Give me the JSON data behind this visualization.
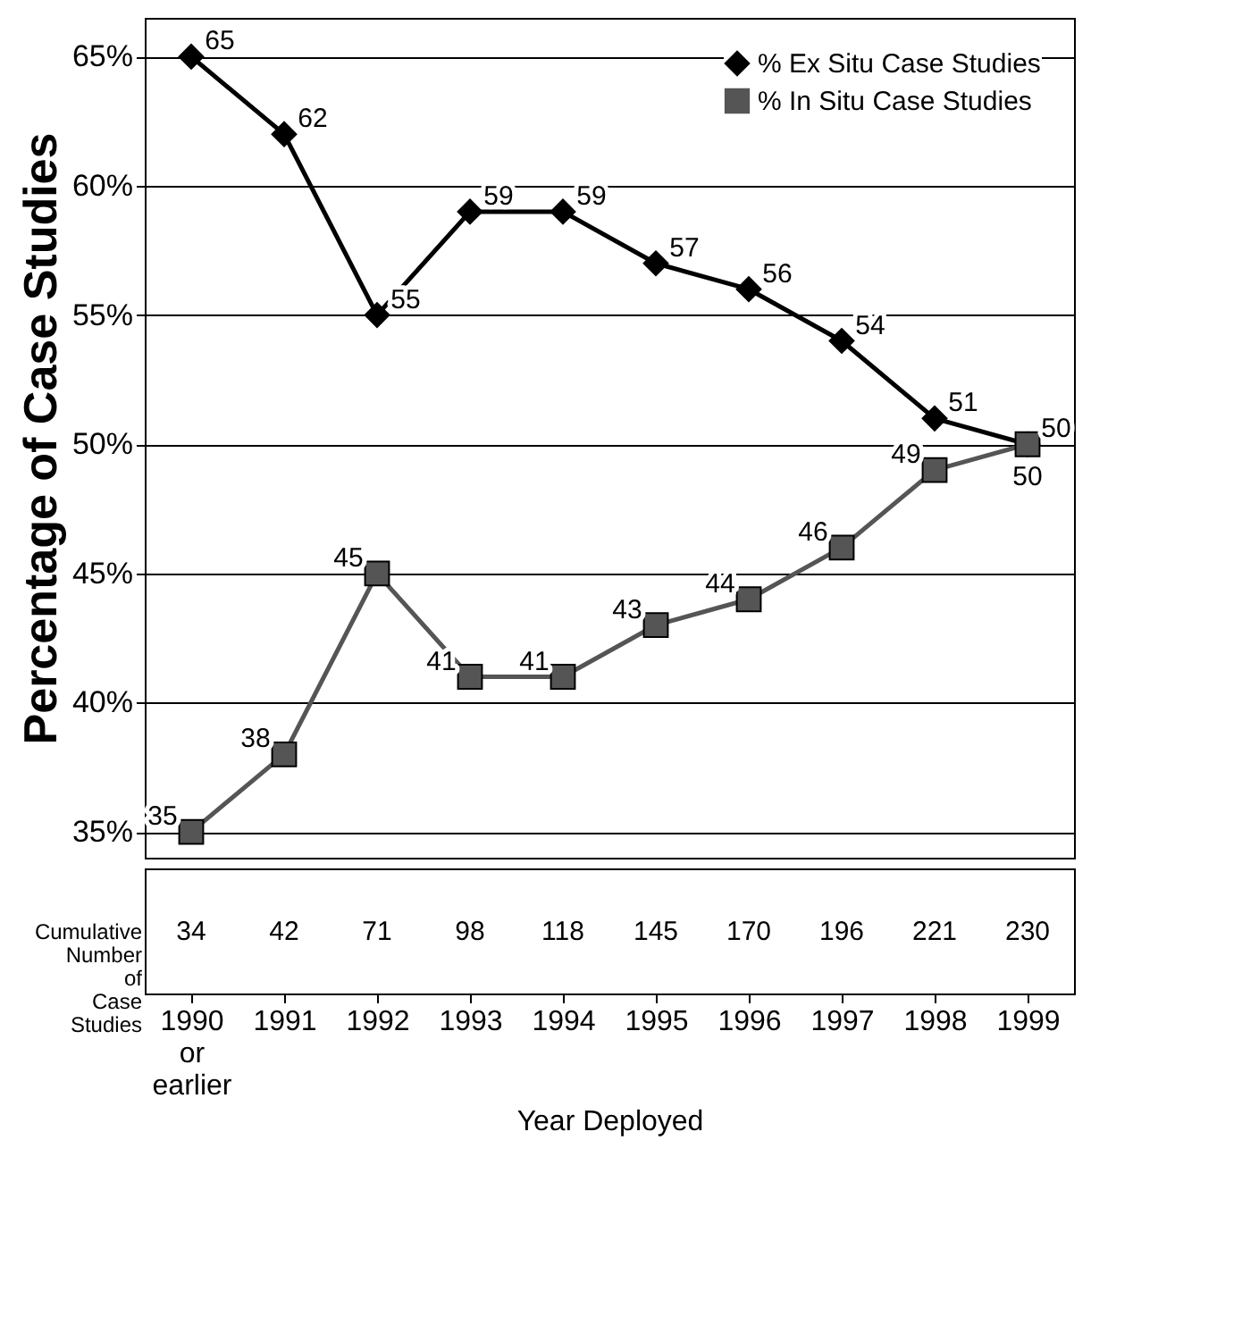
{
  "chart_data": {
    "type": "line",
    "ylabel": "Percentage of Case Studies",
    "xlabel": "Year Deployed",
    "categories": [
      "1990 or earlier",
      "1991",
      "1992",
      "1993",
      "1994",
      "1995",
      "1996",
      "1997",
      "1998",
      "1999"
    ],
    "series": [
      {
        "name": "% Ex Situ Case Studies",
        "color": "#000000",
        "marker": "diamond",
        "values": [
          65,
          62,
          55,
          59,
          59,
          57,
          56,
          54,
          51,
          50
        ]
      },
      {
        "name": "% In Situ Case Studies",
        "color": "#555555",
        "marker": "square",
        "values": [
          35,
          38,
          45,
          41,
          41,
          43,
          44,
          46,
          49,
          50
        ]
      }
    ],
    "ylim": [
      34,
      66.5
    ],
    "yticks": [
      {
        "value": 35,
        "label": "35%"
      },
      {
        "value": 40,
        "label": "40%"
      },
      {
        "value": 45,
        "label": "45%"
      },
      {
        "value": 50,
        "label": "50%"
      },
      {
        "value": 55,
        "label": "55%"
      },
      {
        "value": 60,
        "label": "60%"
      },
      {
        "value": 65,
        "label": "65%"
      }
    ],
    "grid": "y",
    "legend": "top right",
    "data_labels": true,
    "annotations": [
      "Cumulative Number of Case Studies",
      "34",
      "42",
      "71",
      "98",
      "118",
      "145",
      "170",
      "196",
      "221",
      "230"
    ]
  }
}
